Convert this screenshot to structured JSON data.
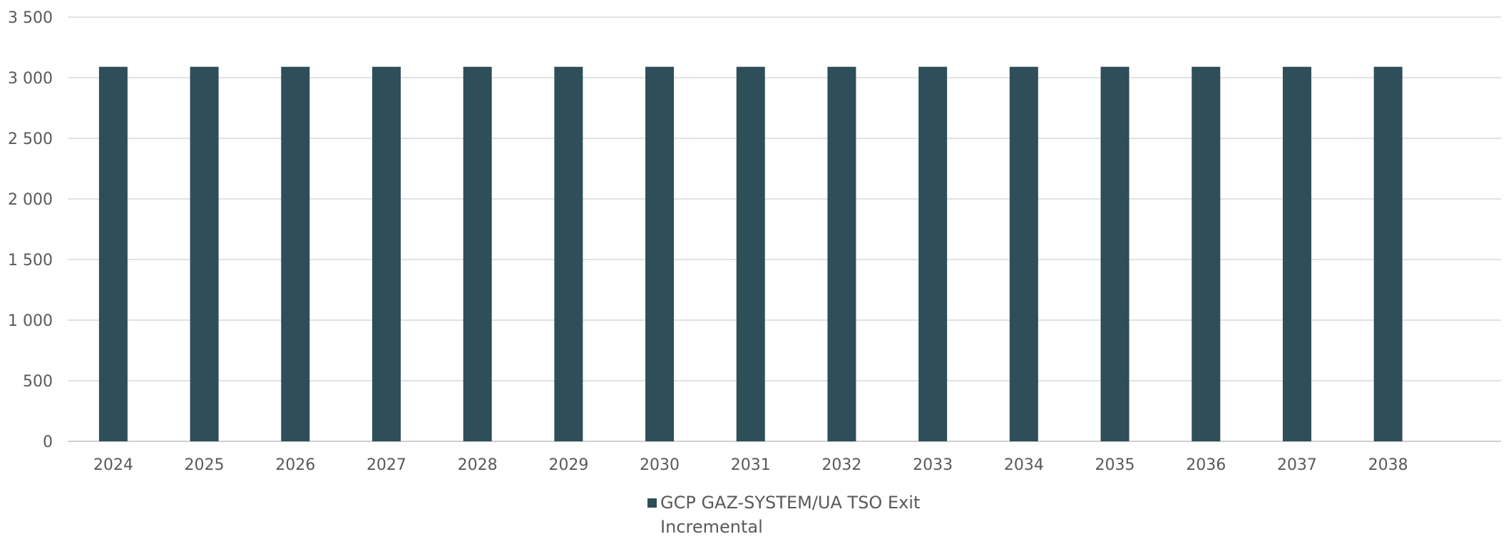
{
  "chart_data": {
    "type": "bar",
    "title": "",
    "xlabel": "",
    "ylabel": "",
    "categories": [
      "2024",
      "2025",
      "2026",
      "2027",
      "2028",
      "2029",
      "2030",
      "2031",
      "2032",
      "2033",
      "2034",
      "2035",
      "2036",
      "2037",
      "2038"
    ],
    "series": [
      {
        "name": "GCP GAZ-SYSTEM/UA TSO Exit Incremental",
        "color": "#2e4e59",
        "values": [
          3090,
          3090,
          3090,
          3090,
          3090,
          3090,
          3090,
          3090,
          3090,
          3090,
          3090,
          3090,
          3090,
          3090,
          3090
        ]
      }
    ],
    "ylim": [
      0,
      3500
    ],
    "yticks": [
      {
        "value": 0,
        "label": "0"
      },
      {
        "value": 500,
        "label": "500"
      },
      {
        "value": 1000,
        "label": "1 000"
      },
      {
        "value": 1500,
        "label": "1 500"
      },
      {
        "value": 2000,
        "label": "2 000"
      },
      {
        "value": 2500,
        "label": "2 500"
      },
      {
        "value": 3000,
        "label": "3 000"
      },
      {
        "value": 3500,
        "label": "3 500"
      }
    ],
    "grid": true,
    "legend_position": "bottom"
  }
}
